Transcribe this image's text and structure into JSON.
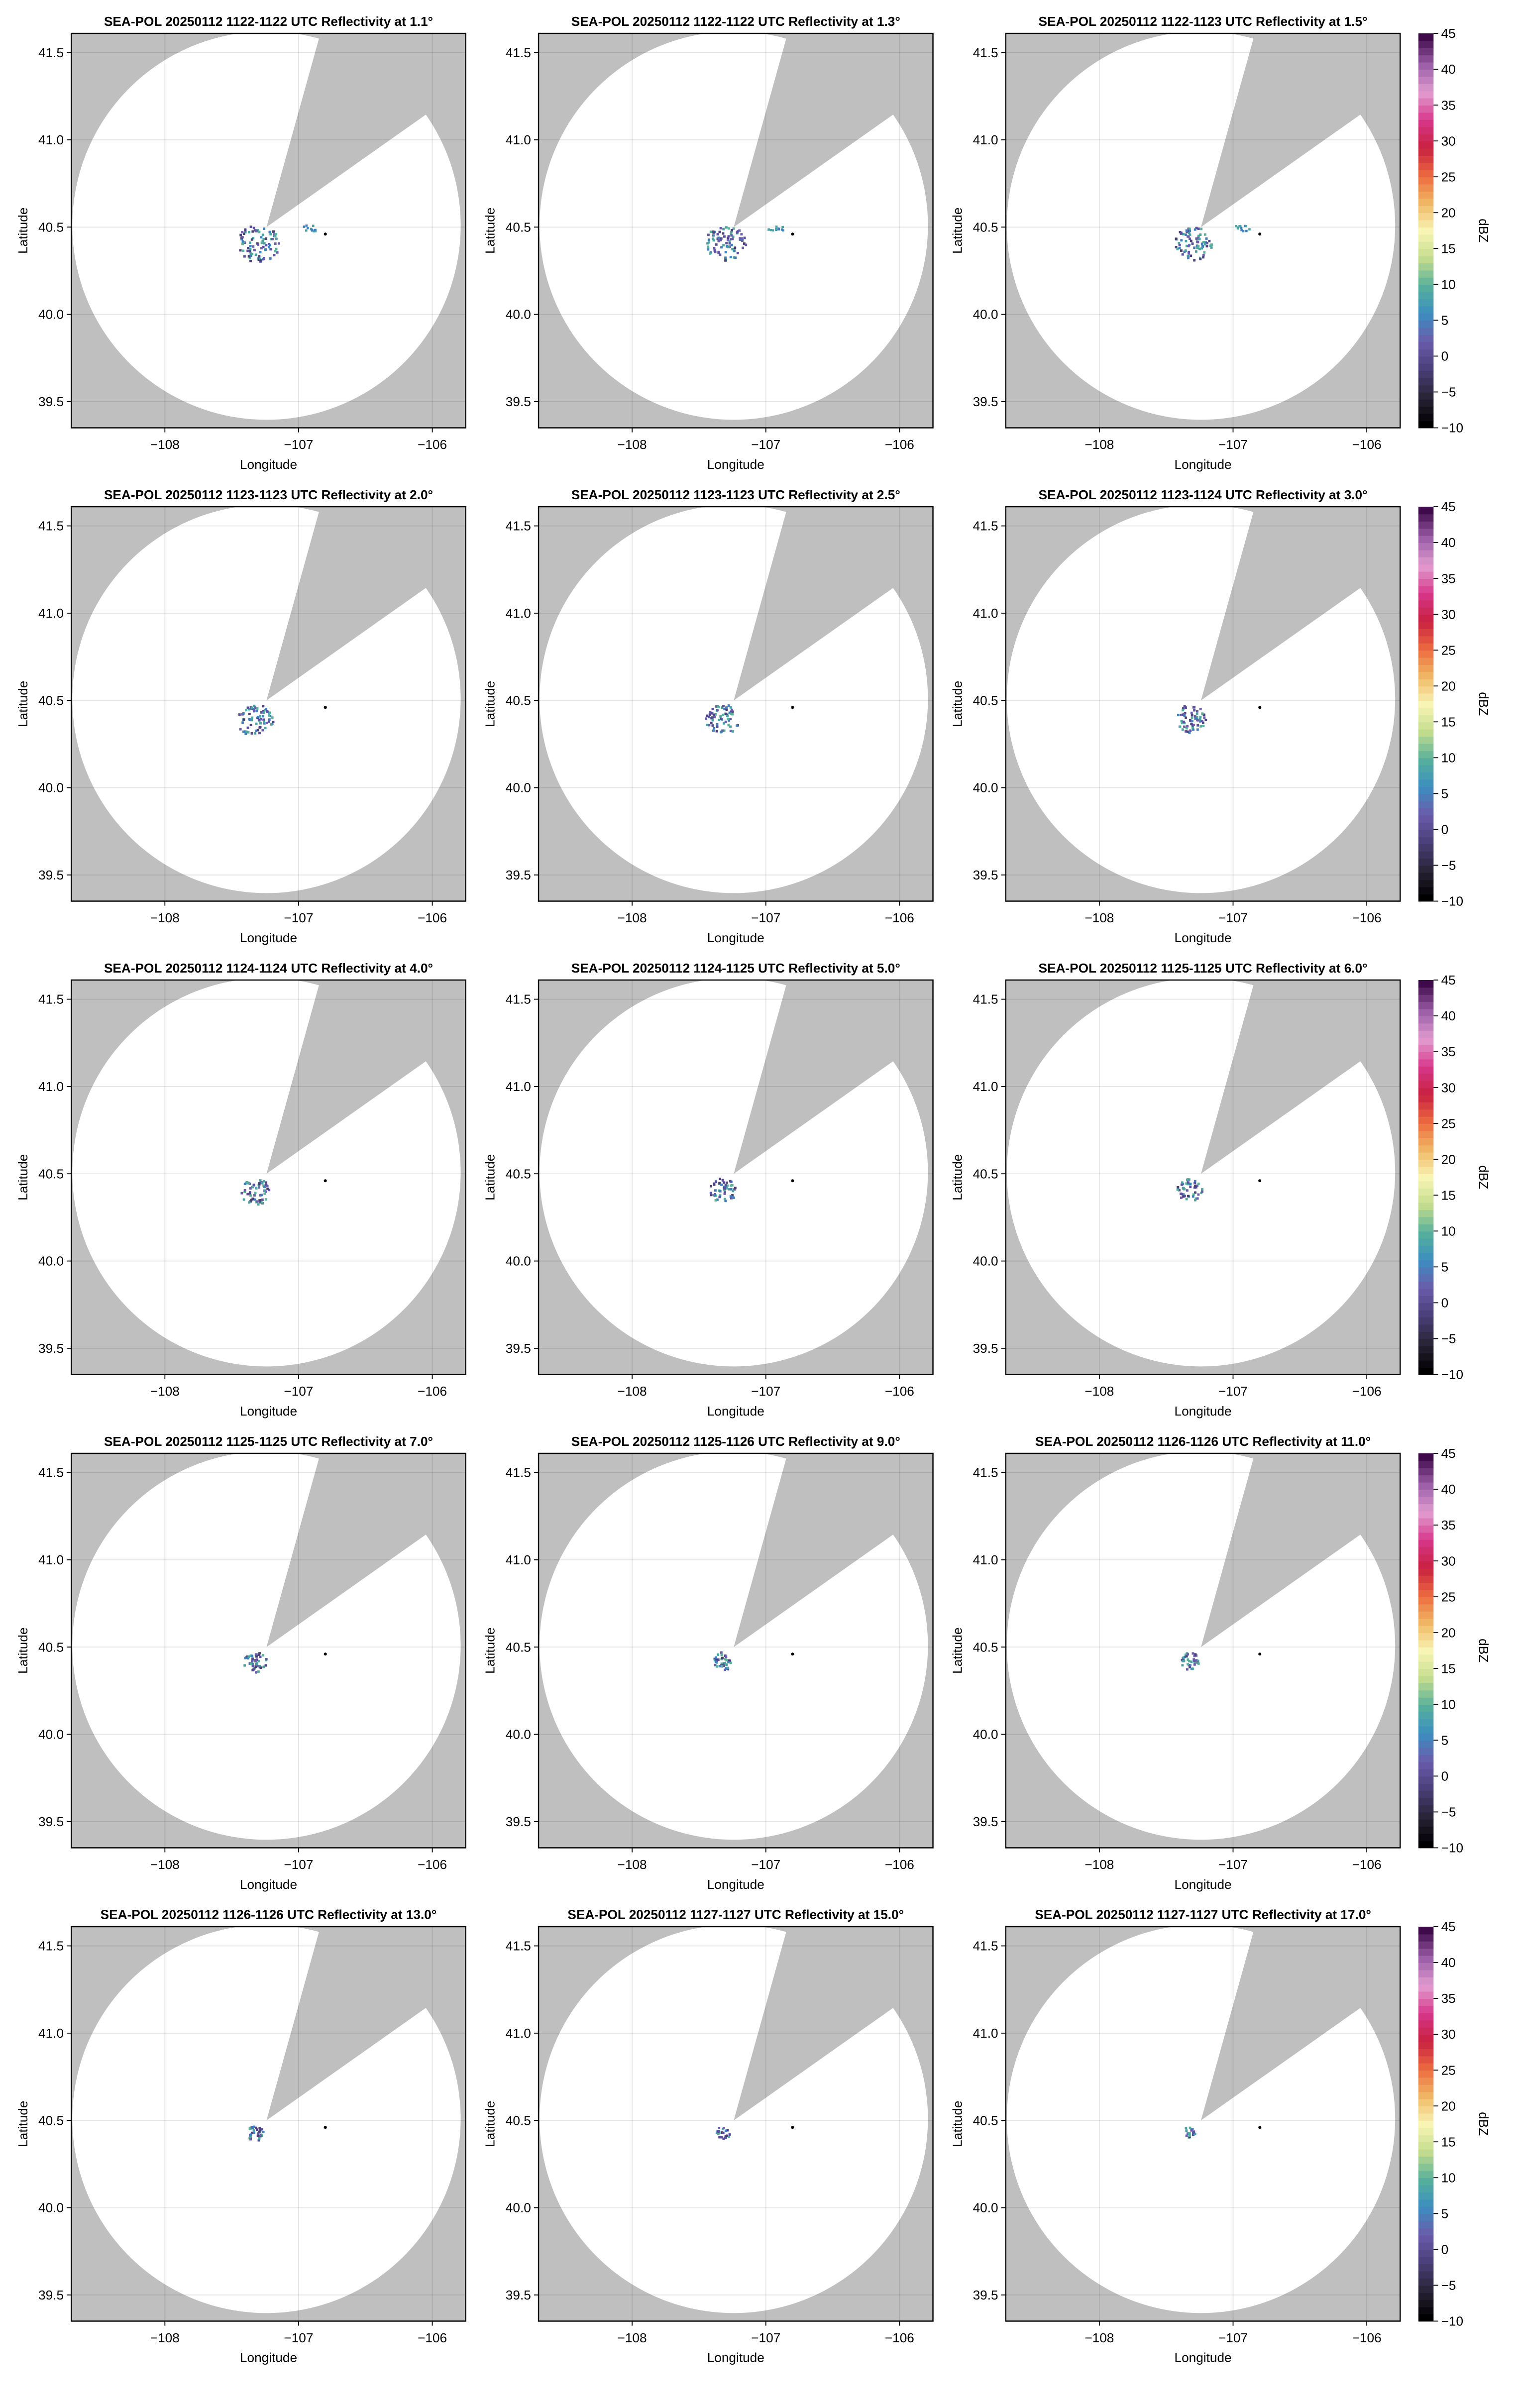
{
  "chart_data": {
    "type": "heatmap",
    "layout": "5x3 grid of radar PPI maps",
    "xlabel": "Longitude",
    "ylabel": "Latitude",
    "xlim": [
      -108.7,
      -105.75
    ],
    "ylim": [
      39.35,
      41.61
    ],
    "xticks": [
      -108,
      -107,
      -106
    ],
    "xtick_labels": [
      "−108",
      "−107",
      "−106"
    ],
    "yticks": [
      39.5,
      40.0,
      40.5,
      41.0,
      41.5
    ],
    "ytick_labels": [
      "39.5",
      "40.0",
      "40.5",
      "41.0",
      "41.5"
    ],
    "grid": true,
    "background_color": "#bfbfbf",
    "coverage_color": "#ffffff",
    "radar_site": {
      "lon": -107.24,
      "lat": 40.5
    },
    "marker": {
      "lon": -106.8,
      "lat": 40.46
    },
    "panels": [
      {
        "title": "SEA-POL 20250112 1122-1122 UTC Reflectivity at 1.1°",
        "elevation": 1.1
      },
      {
        "title": "SEA-POL 20250112 1122-1122 UTC Reflectivity at 1.3°",
        "elevation": 1.3
      },
      {
        "title": "SEA-POL 20250112 1122-1123 UTC Reflectivity at 1.5°",
        "elevation": 1.5
      },
      {
        "title": "SEA-POL 20250112 1123-1123 UTC Reflectivity at 2.0°",
        "elevation": 2.0
      },
      {
        "title": "SEA-POL 20250112 1123-1123 UTC Reflectivity at 2.5°",
        "elevation": 2.5
      },
      {
        "title": "SEA-POL 20250112 1123-1124 UTC Reflectivity at 3.0°",
        "elevation": 3.0
      },
      {
        "title": "SEA-POL 20250112 1124-1124 UTC Reflectivity at 4.0°",
        "elevation": 4.0
      },
      {
        "title": "SEA-POL 20250112 1124-1125 UTC Reflectivity at 5.0°",
        "elevation": 5.0
      },
      {
        "title": "SEA-POL 20250112 1125-1125 UTC Reflectivity at 6.0°",
        "elevation": 6.0
      },
      {
        "title": "SEA-POL 20250112 1125-1125 UTC Reflectivity at 7.0°",
        "elevation": 7.0
      },
      {
        "title": "SEA-POL 20250112 1125-1126 UTC Reflectivity at 9.0°",
        "elevation": 9.0
      },
      {
        "title": "SEA-POL 20250112 1126-1126 UTC Reflectivity at 11.0°",
        "elevation": 11.0
      },
      {
        "title": "SEA-POL 20250112 1126-1126 UTC Reflectivity at 13.0°",
        "elevation": 13.0
      },
      {
        "title": "SEA-POL 20250112 1127-1127 UTC Reflectivity at 15.0°",
        "elevation": 15.0
      },
      {
        "title": "SEA-POL 20250112 1127-1127 UTC Reflectivity at 17.0°",
        "elevation": 17.0
      }
    ],
    "colorbar": {
      "label": "dBZ",
      "range": [
        -10,
        45
      ],
      "ticks": [
        -10,
        -5,
        0,
        5,
        10,
        15,
        20,
        25,
        30,
        35,
        40,
        45
      ],
      "tick_labels": [
        "−10",
        "−5",
        "0",
        "5",
        "10",
        "15",
        "20",
        "25",
        "30",
        "35",
        "40",
        "45"
      ],
      "colors": [
        "#000000",
        "#2a2438",
        "#4a3f78",
        "#6a5bab",
        "#3b8ec0",
        "#56b09a",
        "#c4dd8e",
        "#f8f5b4",
        "#f0b865",
        "#ec6a3f",
        "#c8203f",
        "#d7378b",
        "#e29dd0",
        "#9b5fa8",
        "#3f0a4a"
      ]
    }
  }
}
